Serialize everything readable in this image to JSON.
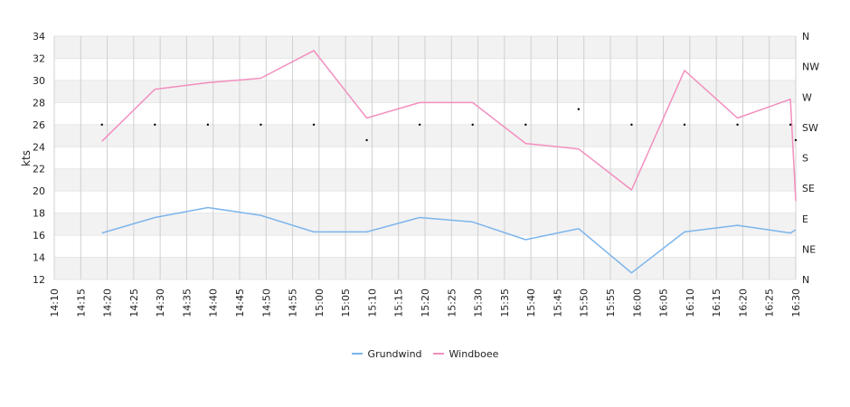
{
  "chart_data": {
    "type": "line",
    "ylabel": "kts",
    "ylim": [
      12,
      34
    ],
    "yticks": [
      12,
      14,
      16,
      18,
      20,
      22,
      24,
      26,
      28,
      30,
      32,
      34
    ],
    "xlim": [
      "14:10",
      "16:30"
    ],
    "xticks": [
      "14:10",
      "14:15",
      "14:20",
      "14:25",
      "14:30",
      "14:35",
      "14:40",
      "14:45",
      "14:50",
      "14:55",
      "15:00",
      "15:05",
      "15:10",
      "15:15",
      "15:20",
      "15:25",
      "15:30",
      "15:35",
      "15:40",
      "15:45",
      "15:50",
      "15:55",
      "16:00",
      "16:05",
      "16:10",
      "16:15",
      "16:20",
      "16:25",
      "16:30"
    ],
    "right_axis_labels": [
      "N",
      "NE",
      "E",
      "SE",
      "S",
      "SW",
      "W",
      "NW",
      "N"
    ],
    "grid": true,
    "legend_position": "bottom",
    "series": [
      {
        "name": "Grundwind",
        "color": "#7cb5ec",
        "x": [
          "14:19",
          "14:29",
          "14:39",
          "14:49",
          "14:59",
          "15:09",
          "15:19",
          "15:29",
          "15:39",
          "15:49",
          "15:59",
          "16:09",
          "16:19",
          "16:29",
          "16:30"
        ],
        "values": [
          16.2,
          17.6,
          18.5,
          17.8,
          16.3,
          16.3,
          17.6,
          17.2,
          15.6,
          16.6,
          12.6,
          16.3,
          16.9,
          16.2,
          16.5
        ]
      },
      {
        "name": "Windboee",
        "color": "#f28fbf",
        "x": [
          "14:19",
          "14:29",
          "14:39",
          "14:49",
          "14:59",
          "15:09",
          "15:19",
          "15:29",
          "15:39",
          "15:49",
          "15:59",
          "16:09",
          "16:19",
          "16:29",
          "16:30"
        ],
        "values": [
          24.5,
          29.2,
          29.8,
          30.2,
          32.7,
          26.6,
          28.0,
          28.0,
          24.3,
          23.8,
          20.1,
          30.9,
          26.6,
          28.3,
          19.1
        ]
      }
    ],
    "direction_markers": {
      "x": [
        "14:19",
        "14:29",
        "14:39",
        "14:49",
        "14:59",
        "15:09",
        "15:19",
        "15:29",
        "15:39",
        "15:49",
        "15:59",
        "16:09",
        "16:19",
        "16:29",
        "16:30"
      ],
      "values": [
        26.0,
        26.0,
        26.0,
        26.0,
        26.0,
        24.6,
        26.0,
        26.0,
        26.0,
        27.4,
        26.0,
        26.0,
        26.0,
        26.0,
        24.6
      ]
    }
  }
}
